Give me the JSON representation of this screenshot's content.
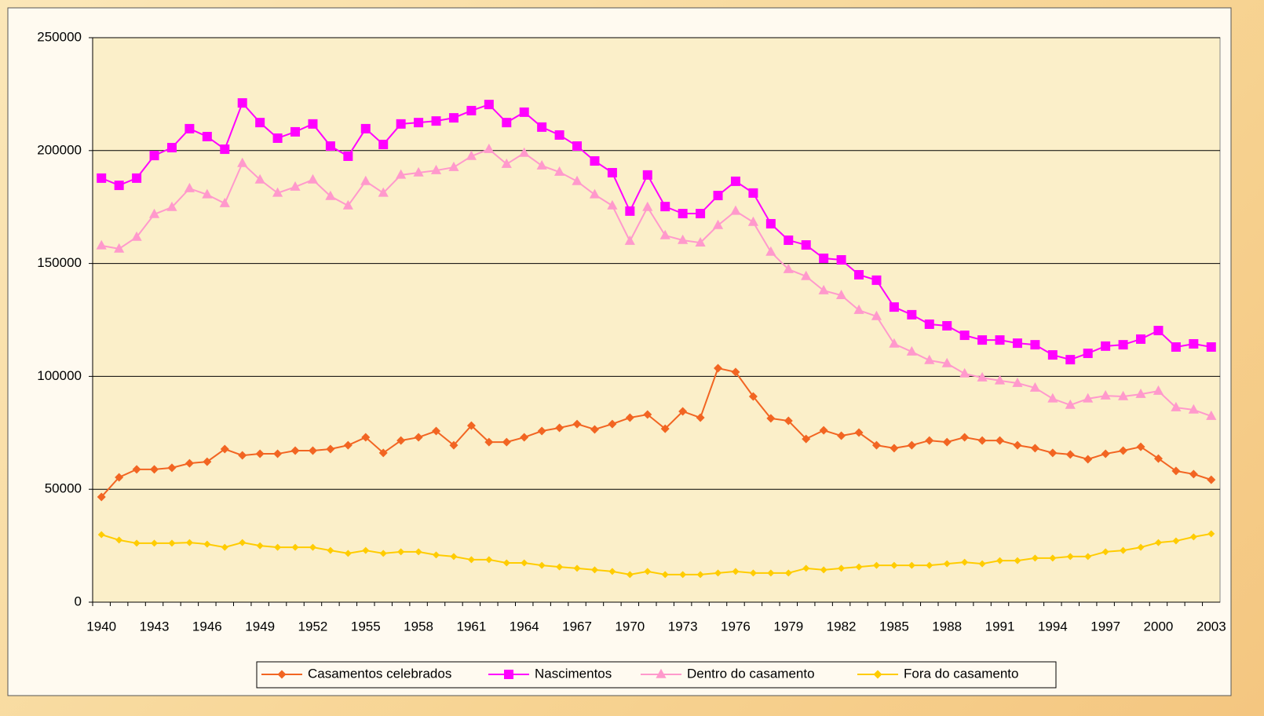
{
  "chart_data": {
    "type": "line",
    "categories": [
      "1940",
      null,
      null,
      "1943",
      null,
      null,
      "1946",
      null,
      null,
      "1949",
      null,
      null,
      "1952",
      null,
      null,
      "1955",
      null,
      null,
      "1958",
      null,
      null,
      "1961",
      null,
      null,
      "1964",
      null,
      null,
      "1967",
      null,
      null,
      "1970",
      null,
      null,
      "1973",
      null,
      null,
      "1976",
      null,
      null,
      "1979",
      null,
      null,
      "1982",
      null,
      null,
      "1985",
      null,
      null,
      "1988",
      null,
      null,
      "1991",
      null,
      null,
      "1994",
      null,
      null,
      "1997",
      null,
      null,
      "2000",
      null,
      null,
      "2003"
    ],
    "series": [
      {
        "name": "Casamentos celebrados",
        "color": "#f26522",
        "marker": "diamond",
        "values": [
          46600,
          55300,
          58800,
          58800,
          59500,
          61500,
          62200,
          67800,
          65000,
          65700,
          65700,
          67100,
          67100,
          67800,
          69500,
          73000,
          66100,
          71600,
          73000,
          75800,
          69500,
          78200,
          70900,
          70900,
          73000,
          75800,
          77200,
          78900,
          76500,
          78900,
          81700,
          83100,
          76800,
          84500,
          81700,
          103600,
          101900,
          91100,
          81400,
          80300,
          72300,
          76100,
          73700,
          75100,
          69500,
          68200,
          69500,
          71600,
          70900,
          73000,
          71600,
          71600,
          69500,
          68200,
          66100,
          65400,
          63300,
          65700,
          67100,
          68800,
          63600,
          58100,
          56700,
          54200
        ]
      },
      {
        "name": "Nascimentos",
        "color": "#ff00ff",
        "marker": "square",
        "values": [
          187800,
          184600,
          187800,
          197800,
          201300,
          209700,
          206200,
          200600,
          221100,
          212400,
          205500,
          208300,
          211800,
          202000,
          197500,
          209700,
          202700,
          211800,
          212400,
          213100,
          214500,
          217700,
          220400,
          212400,
          217000,
          210400,
          206900,
          202000,
          195400,
          190200,
          173200,
          189200,
          175200,
          172100,
          172100,
          180100,
          186400,
          181200,
          167600,
          160300,
          158200,
          152300,
          151600,
          145000,
          142600,
          130700,
          127300,
          123100,
          122400,
          118200,
          116100,
          116100,
          114700,
          114000,
          109500,
          107400,
          110200,
          113400,
          114000,
          116500,
          120300,
          113000,
          114400,
          113000
        ]
      },
      {
        "name": "Dentro do casamento",
        "color": "#ff99cc",
        "marker": "triangle",
        "values": [
          157900,
          156500,
          161700,
          171800,
          174900,
          183200,
          180500,
          176600,
          194400,
          187100,
          181200,
          183900,
          187100,
          179800,
          175600,
          186400,
          181200,
          189200,
          190200,
          191200,
          192600,
          197500,
          200600,
          194000,
          198900,
          193300,
          190500,
          186400,
          180500,
          175600,
          159900,
          174900,
          162400,
          160300,
          159200,
          166900,
          173200,
          168300,
          155100,
          147400,
          144300,
          138000,
          135900,
          129300,
          126600,
          114400,
          110900,
          107100,
          105700,
          101200,
          99400,
          98100,
          97000,
          94900,
          90100,
          87300,
          90100,
          91400,
          91100,
          92100,
          93500,
          86200,
          85200,
          82400
        ]
      },
      {
        "name": "Fora do casamento",
        "color": "#ffcc00",
        "marker": "diamond",
        "values": [
          29900,
          27500,
          26100,
          26100,
          26100,
          26400,
          25700,
          24300,
          26400,
          25000,
          24300,
          24300,
          24300,
          22900,
          21600,
          22900,
          21600,
          22300,
          22300,
          20900,
          20200,
          18800,
          18800,
          17400,
          17400,
          16300,
          15600,
          15000,
          14300,
          13600,
          12200,
          13600,
          12200,
          12200,
          12200,
          12900,
          13600,
          12900,
          12900,
          12900,
          15000,
          14300,
          15000,
          15600,
          16300,
          16300,
          16300,
          16300,
          17000,
          17700,
          17000,
          18400,
          18400,
          19500,
          19500,
          20200,
          20200,
          22300,
          22900,
          24300,
          26400,
          27100,
          28900,
          30300
        ]
      }
    ],
    "ylim": [
      0,
      250000
    ],
    "yticks": [
      0,
      50000,
      100000,
      150000,
      200000,
      250000
    ],
    "grid": true
  }
}
